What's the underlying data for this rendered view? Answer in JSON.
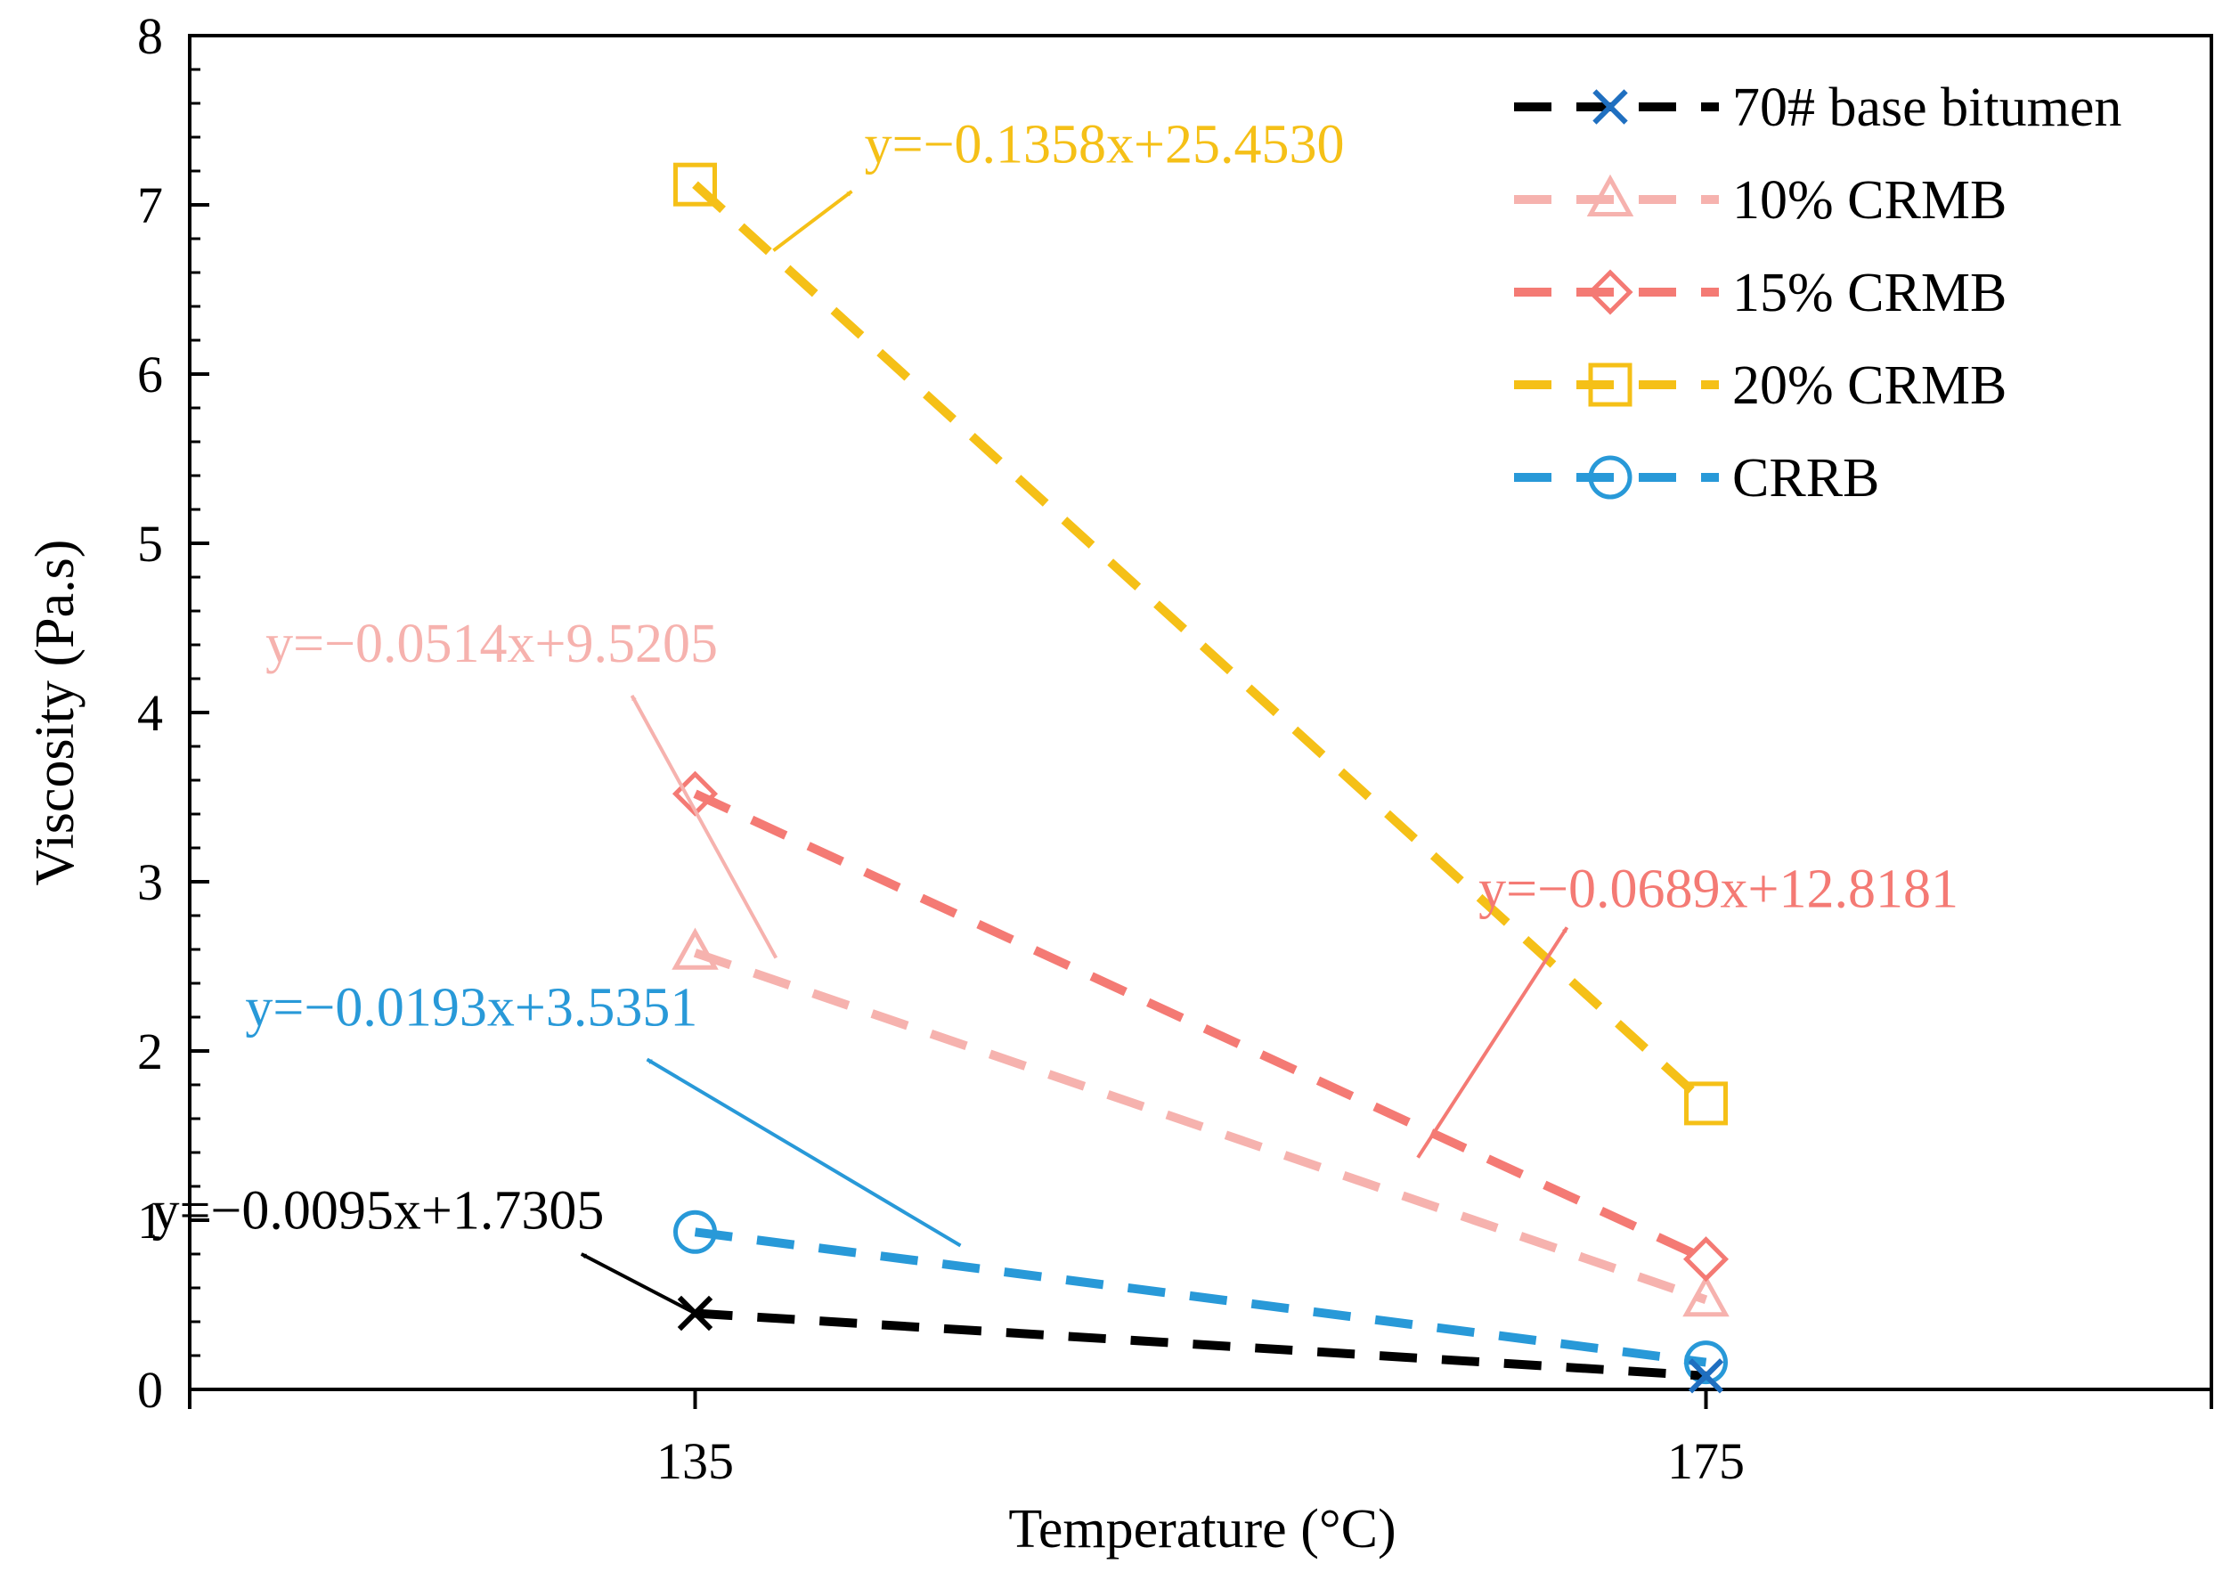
{
  "chart_data": {
    "type": "line",
    "xlabel": "Temperature (°C)",
    "ylabel": "Viscosity (Pa.s)",
    "x": [
      135,
      175
    ],
    "xlim": [
      115,
      195
    ],
    "ylim": [
      0,
      8
    ],
    "xticks": [
      "135",
      "175"
    ],
    "yticks": [
      "0",
      "1",
      "2",
      "3",
      "4",
      "5",
      "6",
      "7",
      "8"
    ],
    "grid": false,
    "legend_position": "top-right",
    "series": [
      {
        "name": "70# base bitumen",
        "values": [
          0.45,
          0.08
        ],
        "color": "#000000",
        "marker": "x",
        "marker_color": "#1f6fc0",
        "equation": "y=−0.0095x+1.7305"
      },
      {
        "name": "10% CRMB",
        "values": [
          2.58,
          0.53
        ],
        "color": "#f6b2ae",
        "marker": "triangle",
        "marker_color": "#f6b2ae",
        "equation": "y=−0.0514x+9.5205"
      },
      {
        "name": "15% CRMB",
        "values": [
          3.52,
          0.77
        ],
        "color": "#f47a74",
        "marker": "diamond",
        "marker_color": "#f47a74",
        "equation": "y=−0.0689x+12.8181"
      },
      {
        "name": "20% CRMB",
        "values": [
          7.12,
          1.69
        ],
        "color": "#f5c017",
        "marker": "square",
        "marker_color": "#f5c017",
        "equation": "y=−0.1358x+25.4530"
      },
      {
        "name": "CRRB",
        "values": [
          0.93,
          0.16
        ],
        "color": "#2899d8",
        "marker": "circle",
        "marker_color": "#2899d8",
        "equation": "y=−0.0193x+3.5351"
      }
    ],
    "annotations": [
      {
        "series": 0,
        "text": "y=−0.0095x+1.7305",
        "color": "#000000",
        "text_at": [
          113.5,
          0.95
        ],
        "arrow_from": [
          135,
          0.45
        ],
        "arrow_to": [
          130.5,
          0.8
        ]
      },
      {
        "series": 1,
        "text": "y=−0.0514x+9.5205",
        "color": "#f6b2ae",
        "text_at": [
          118,
          4.3
        ],
        "arrow_from": [
          138.2,
          2.55
        ],
        "arrow_to": [
          132.5,
          4.1
        ]
      },
      {
        "series": 2,
        "text": "y=−0.0689x+12.8181",
        "color": "#f47a74",
        "text_at": [
          166,
          2.85
        ],
        "arrow_from": [
          163.6,
          1.37
        ],
        "arrow_to": [
          169.5,
          2.73
        ]
      },
      {
        "series": 3,
        "text": "y=−0.1358x+25.4530",
        "color": "#f5c017",
        "text_at": [
          141.7,
          7.25
        ],
        "arrow_from": [
          138.1,
          6.73
        ],
        "arrow_to": [
          141.2,
          7.08
        ]
      },
      {
        "series": 4,
        "text": "y=−0.0193x+3.5351",
        "color": "#2899d8",
        "text_at": [
          117.2,
          2.15
        ],
        "arrow_from": [
          145.5,
          0.85
        ],
        "arrow_to": [
          133.1,
          1.95
        ]
      }
    ]
  }
}
